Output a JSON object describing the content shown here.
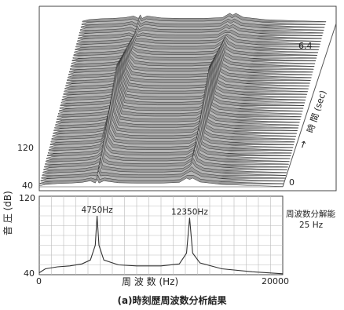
{
  "caption": "(a)時刻歴周波数分析結果",
  "chart_data": [
    {
      "type": "waterfall",
      "ylabel": "音 圧 (dB)",
      "y_ticks": [
        "120",
        "40"
      ],
      "time_axis": {
        "label": "時 間 (sec)",
        "arrow": "→",
        "ticks": [
          "6.4",
          "0"
        ]
      },
      "grid": false
    },
    {
      "type": "line",
      "xlabel": "周 波 数 (Hz)",
      "x_ticks": [
        "0",
        "20000"
      ],
      "xlim": [
        0,
        20000
      ],
      "y_ticks": [
        "120",
        "40"
      ],
      "ylim": [
        40,
        120
      ],
      "grid": true,
      "annotations": [
        {
          "text": "4750Hz",
          "x": 4750,
          "y": 100
        },
        {
          "text": "12350Hz",
          "x": 12350,
          "y": 98
        }
      ],
      "resolution_note": [
        "周波数分解能",
        "25 Hz"
      ],
      "series": [
        {
          "x": [
            0,
            500,
            1500,
            2500,
            3500,
            4200,
            4600,
            4750,
            4900,
            5300,
            6500,
            8000,
            10000,
            11500,
            12100,
            12350,
            12600,
            13200,
            15000,
            17500,
            20000
          ],
          "y": [
            42,
            46,
            48,
            49,
            51,
            55,
            70,
            100,
            70,
            55,
            50,
            49,
            49,
            51,
            62,
            98,
            62,
            52,
            46,
            43,
            41
          ]
        }
      ]
    }
  ]
}
